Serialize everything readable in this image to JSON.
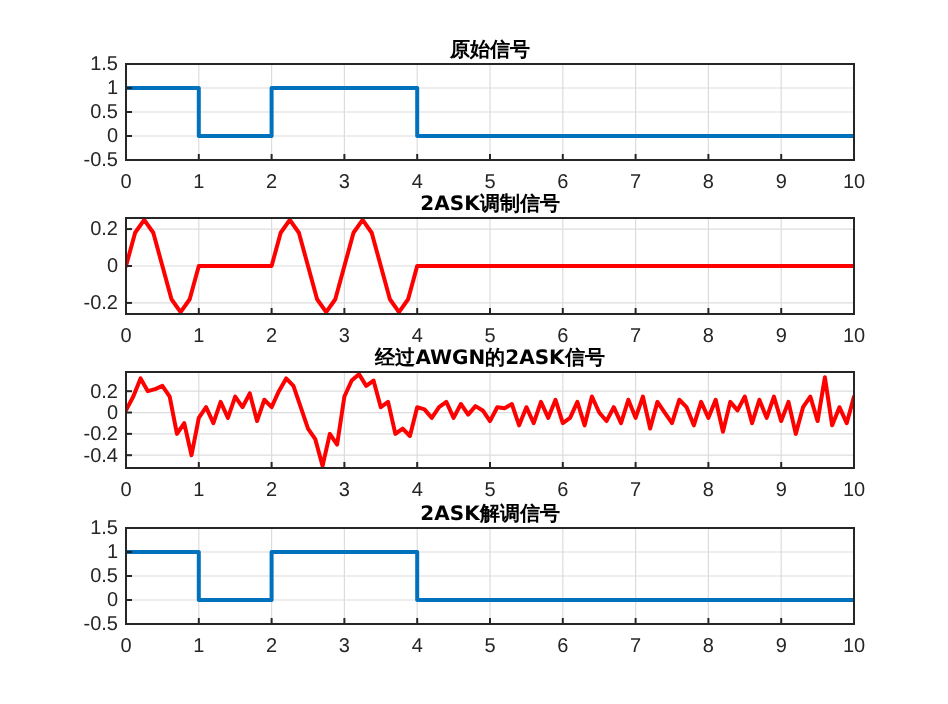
{
  "chart_data": [
    {
      "type": "line",
      "title": "原始信号",
      "xlim": [
        0,
        10
      ],
      "xticks": [
        0,
        1,
        2,
        3,
        4,
        5,
        6,
        7,
        8,
        9,
        10
      ],
      "ylim": [
        -0.5,
        1.5
      ],
      "yticks": [
        -0.5,
        0,
        0.5,
        1,
        1.5
      ],
      "grid": true,
      "series": [
        {
          "color": "#0072bd",
          "x": [
            0,
            1,
            1,
            2,
            2,
            4,
            4,
            10
          ],
          "values": [
            1,
            1,
            0,
            0,
            1,
            1,
            0,
            0
          ]
        }
      ]
    },
    {
      "type": "line",
      "title": "2ASK调制信号",
      "xlim": [
        0,
        10
      ],
      "xticks": [
        0,
        1,
        2,
        3,
        4,
        5,
        6,
        7,
        8,
        9,
        10
      ],
      "ylim": [
        -0.26,
        0.26
      ],
      "yticks": [
        -0.2,
        0,
        0.2
      ],
      "grid": true,
      "series": [
        {
          "color": "#ff0000",
          "x": [
            0,
            0.125,
            0.25,
            0.375,
            0.5,
            0.625,
            0.75,
            0.875,
            1,
            2,
            2.125,
            2.25,
            2.375,
            2.5,
            2.625,
            2.75,
            2.875,
            3,
            3.125,
            3.25,
            3.375,
            3.5,
            3.625,
            3.75,
            3.875,
            4,
            10
          ],
          "values": [
            0,
            0.18,
            0.25,
            0.18,
            0,
            -0.18,
            -0.25,
            -0.18,
            0,
            0,
            0.18,
            0.25,
            0.18,
            0,
            -0.18,
            -0.25,
            -0.18,
            0,
            0.18,
            0.25,
            0.18,
            0,
            -0.18,
            -0.25,
            -0.18,
            0,
            0
          ]
        }
      ]
    },
    {
      "type": "line",
      "title": "经过AWGN的2ASK信号",
      "xlim": [
        0,
        10
      ],
      "xticks": [
        0,
        1,
        2,
        3,
        4,
        5,
        6,
        7,
        8,
        9,
        10
      ],
      "ylim": [
        -0.52,
        0.38
      ],
      "yticks": [
        -0.4,
        -0.2,
        0,
        0.2
      ],
      "grid": true,
      "series": [
        {
          "color": "#ff0000",
          "x": [
            0,
            0.1,
            0.2,
            0.3,
            0.4,
            0.5,
            0.6,
            0.7,
            0.8,
            0.9,
            1,
            1.1,
            1.2,
            1.3,
            1.4,
            1.5,
            1.6,
            1.7,
            1.8,
            1.9,
            2,
            2.1,
            2.2,
            2.3,
            2.4,
            2.5,
            2.6,
            2.7,
            2.8,
            2.9,
            3,
            3.1,
            3.2,
            3.3,
            3.4,
            3.5,
            3.6,
            3.7,
            3.8,
            3.9,
            4,
            4.1,
            4.2,
            4.3,
            4.4,
            4.5,
            4.6,
            4.7,
            4.8,
            4.9,
            5,
            5.1,
            5.2,
            5.3,
            5.4,
            5.5,
            5.6,
            5.7,
            5.8,
            5.9,
            6,
            6.1,
            6.2,
            6.3,
            6.4,
            6.5,
            6.6,
            6.7,
            6.8,
            6.9,
            7,
            7.1,
            7.2,
            7.3,
            7.4,
            7.5,
            7.6,
            7.7,
            7.8,
            7.9,
            8,
            8.1,
            8.2,
            8.3,
            8.4,
            8.5,
            8.6,
            8.7,
            8.8,
            8.9,
            9,
            9.1,
            9.2,
            9.3,
            9.4,
            9.5,
            9.6,
            9.7,
            9.8,
            9.9,
            10
          ],
          "values": [
            0.02,
            0.15,
            0.32,
            0.2,
            0.22,
            0.25,
            0.15,
            -0.2,
            -0.1,
            -0.4,
            -0.05,
            0.05,
            -0.1,
            0.1,
            -0.05,
            0.15,
            0.05,
            0.18,
            -0.08,
            0.12,
            0.05,
            0.2,
            0.32,
            0.25,
            0.05,
            -0.15,
            -0.25,
            -0.5,
            -0.2,
            -0.3,
            0.15,
            0.3,
            0.36,
            0.25,
            0.3,
            0.05,
            0.1,
            -0.2,
            -0.15,
            -0.22,
            0.05,
            0.03,
            -0.05,
            0.05,
            0.1,
            -0.05,
            0.08,
            -0.02,
            0.06,
            0.02,
            -0.08,
            0.05,
            0.04,
            0.08,
            -0.12,
            0.05,
            -0.1,
            0.1,
            -0.05,
            0.12,
            -0.1,
            -0.05,
            0.1,
            -0.12,
            0.15,
            0,
            -0.08,
            0.05,
            -0.1,
            0.12,
            -0.05,
            0.15,
            -0.15,
            0.1,
            0,
            -0.1,
            0.12,
            0.05,
            -0.12,
            0.1,
            -0.05,
            0.12,
            -0.18,
            0.1,
            0.02,
            0.15,
            -0.1,
            0.12,
            -0.05,
            0.15,
            -0.08,
            0.1,
            -0.2,
            0.05,
            0.15,
            -0.08,
            0.33,
            -0.12,
            0.05,
            -0.1,
            0.15
          ]
        }
      ]
    },
    {
      "type": "line",
      "title": "2ASK解调信号",
      "xlim": [
        0,
        10
      ],
      "xticks": [
        0,
        1,
        2,
        3,
        4,
        5,
        6,
        7,
        8,
        9,
        10
      ],
      "ylim": [
        -0.5,
        1.5
      ],
      "yticks": [
        -0.5,
        0,
        0.5,
        1,
        1.5
      ],
      "grid": true,
      "series": [
        {
          "color": "#0072bd",
          "x": [
            0,
            1,
            1,
            2,
            2,
            4,
            4,
            10
          ],
          "values": [
            1,
            1,
            0,
            0,
            1,
            1,
            0,
            0
          ]
        }
      ]
    }
  ]
}
